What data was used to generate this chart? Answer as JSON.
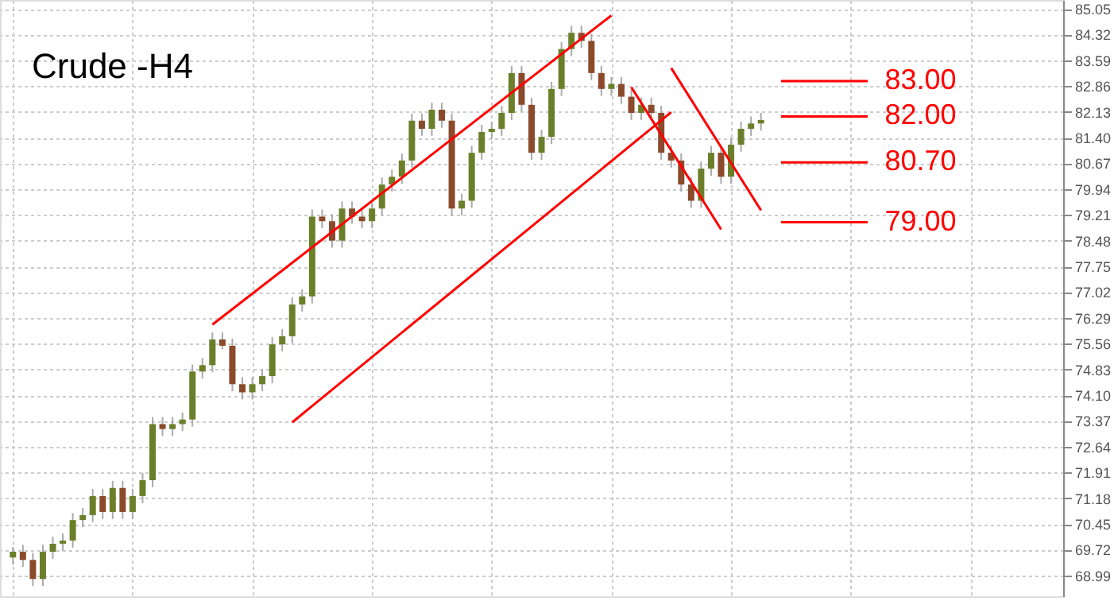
{
  "chart_data": {
    "type": "candlestick",
    "title": "Crude -H4",
    "categories": [
      null,
      null,
      null,
      null,
      null,
      null,
      null,
      null,
      null,
      null,
      null,
      null,
      null,
      null,
      null,
      null,
      null,
      null,
      null,
      null,
      null,
      null,
      null,
      null,
      null,
      null,
      null,
      null,
      null,
      null,
      null,
      null,
      null,
      null,
      null,
      null,
      null,
      null,
      null,
      null,
      null,
      null,
      null,
      null,
      null,
      null,
      null,
      null,
      null,
      null,
      null,
      null,
      null,
      null,
      null,
      null,
      null,
      null,
      null,
      null,
      null,
      null,
      null,
      null,
      null,
      null,
      null,
      null,
      null,
      null,
      null,
      null,
      null,
      null,
      null,
      null,
      null,
      null,
      null,
      null,
      null,
      null,
      null,
      null,
      null,
      null,
      null,
      null,
      null,
      null,
      null,
      null,
      null,
      null,
      null,
      null,
      null,
      null,
      null,
      null,
      null,
      null,
      null,
      null,
      null
    ],
    "ohlc": [
      [
        69.5,
        69.8,
        69.3,
        69.66
      ],
      [
        69.66,
        69.86,
        69.23,
        69.43
      ],
      [
        69.43,
        69.63,
        68.69,
        68.89
      ],
      [
        68.89,
        69.86,
        68.69,
        69.66
      ],
      [
        69.66,
        70.09,
        69.46,
        69.89
      ],
      [
        69.89,
        70.18,
        69.69,
        69.98
      ],
      [
        69.98,
        70.76,
        69.78,
        70.56
      ],
      [
        70.56,
        70.9,
        70.36,
        70.7
      ],
      [
        70.7,
        71.44,
        70.5,
        71.24
      ],
      [
        71.24,
        71.44,
        70.59,
        70.79
      ],
      [
        70.79,
        71.67,
        70.59,
        71.47
      ],
      [
        71.47,
        71.67,
        70.59,
        70.79
      ],
      [
        70.79,
        71.44,
        70.59,
        71.24
      ],
      [
        71.24,
        71.89,
        71.04,
        71.69
      ],
      [
        71.69,
        73.48,
        71.49,
        73.28
      ],
      [
        73.28,
        73.48,
        72.94,
        73.14
      ],
      [
        73.14,
        73.48,
        72.94,
        73.28
      ],
      [
        73.28,
        73.61,
        73.08,
        73.41
      ],
      [
        73.41,
        74.97,
        73.21,
        74.77
      ],
      [
        74.77,
        75.15,
        74.57,
        74.95
      ],
      [
        74.95,
        75.88,
        74.75,
        75.68
      ],
      [
        75.68,
        75.88,
        75.4,
        75.5
      ],
      [
        75.5,
        75.7,
        74.21,
        74.41
      ],
      [
        74.41,
        74.61,
        73.98,
        74.18
      ],
      [
        74.18,
        74.61,
        73.98,
        74.41
      ],
      [
        74.41,
        74.84,
        74.21,
        74.64
      ],
      [
        74.64,
        75.74,
        74.44,
        75.54
      ],
      [
        75.54,
        75.97,
        75.34,
        75.77
      ],
      [
        75.77,
        76.87,
        75.57,
        76.67
      ],
      [
        76.67,
        77.1,
        76.47,
        76.9
      ],
      [
        76.9,
        79.36,
        76.7,
        79.16
      ],
      [
        79.16,
        79.36,
        78.83,
        79.03
      ],
      [
        79.03,
        79.23,
        78.28,
        78.48
      ],
      [
        78.48,
        79.59,
        78.28,
        79.39
      ],
      [
        79.39,
        79.59,
        78.96,
        79.16
      ],
      [
        79.16,
        79.36,
        78.83,
        79.03
      ],
      [
        79.03,
        79.59,
        78.83,
        79.39
      ],
      [
        79.39,
        80.27,
        79.19,
        80.07
      ],
      [
        80.07,
        80.49,
        79.87,
        80.29
      ],
      [
        80.29,
        80.95,
        80.09,
        80.75
      ],
      [
        80.75,
        82.08,
        80.55,
        81.88
      ],
      [
        81.88,
        82.08,
        81.45,
        81.65
      ],
      [
        81.65,
        82.39,
        81.45,
        82.19
      ],
      [
        82.19,
        82.39,
        81.68,
        81.88
      ],
      [
        81.88,
        82.08,
        79.19,
        79.39
      ],
      [
        79.39,
        79.81,
        79.19,
        79.61
      ],
      [
        79.61,
        81.17,
        79.41,
        80.97
      ],
      [
        80.97,
        81.76,
        80.77,
        81.56
      ],
      [
        81.56,
        81.85,
        81.36,
        81.65
      ],
      [
        81.65,
        82.3,
        81.45,
        82.1
      ],
      [
        82.1,
        83.43,
        81.9,
        83.23
      ],
      [
        83.23,
        83.43,
        82.13,
        82.33
      ],
      [
        82.33,
        82.53,
        80.77,
        80.97
      ],
      [
        80.97,
        81.62,
        80.77,
        81.42
      ],
      [
        81.42,
        82.98,
        81.22,
        82.78
      ],
      [
        82.78,
        84.11,
        82.58,
        83.91
      ],
      [
        83.91,
        84.57,
        83.71,
        84.37
      ],
      [
        84.37,
        84.57,
        83.94,
        84.14
      ],
      [
        84.14,
        84.34,
        83.03,
        83.23
      ],
      [
        83.23,
        83.43,
        82.58,
        82.78
      ],
      [
        82.78,
        83.12,
        82.58,
        82.92
      ],
      [
        82.92,
        83.12,
        82.36,
        82.56
      ],
      [
        82.56,
        82.76,
        81.9,
        82.1
      ],
      [
        82.1,
        82.53,
        81.9,
        82.33
      ],
      [
        82.33,
        82.53,
        81.9,
        82.1
      ],
      [
        82.1,
        82.3,
        80.77,
        80.97
      ],
      [
        80.97,
        81.17,
        80.55,
        80.75
      ],
      [
        80.75,
        80.95,
        79.87,
        80.07
      ],
      [
        80.07,
        80.27,
        79.41,
        79.61
      ],
      [
        79.61,
        80.72,
        79.41,
        80.52
      ],
      [
        80.52,
        81.17,
        80.32,
        80.97
      ],
      [
        80.97,
        81.17,
        80.09,
        80.29
      ],
      [
        80.29,
        81.4,
        80.09,
        81.2
      ],
      [
        81.2,
        81.85,
        81.0,
        81.65
      ],
      [
        81.65,
        82.0,
        81.45,
        81.8
      ],
      [
        81.8,
        82.1,
        81.6,
        81.9
      ],
      null,
      null,
      null,
      null,
      null,
      null,
      null,
      null,
      null,
      null,
      null,
      null,
      null,
      null,
      null,
      null,
      null,
      null,
      null,
      null,
      null,
      null,
      null,
      null,
      null,
      null,
      null,
      null,
      null
    ],
    "series": [
      {
        "type": "line",
        "color": "#ff0000",
        "values": [
          null,
          null,
          null,
          null,
          null,
          null,
          null,
          null,
          null,
          null,
          null,
          null,
          null,
          null,
          null,
          null,
          null,
          null,
          null,
          null,
          76.1,
          null,
          null,
          null,
          null,
          null,
          null,
          null,
          null,
          null,
          null,
          null,
          null,
          null,
          null,
          null,
          null,
          null,
          null,
          null,
          null,
          null,
          null,
          null,
          null,
          null,
          null,
          null,
          null,
          null,
          null,
          null,
          null,
          null,
          null,
          null,
          null,
          null,
          null,
          null,
          84.86,
          null,
          null,
          null,
          null,
          null,
          null,
          null,
          null,
          null,
          null,
          null,
          null,
          null,
          null,
          null,
          null,
          null,
          null,
          null,
          null,
          null,
          null,
          null,
          null,
          null,
          null,
          null,
          null,
          null,
          null,
          null,
          null,
          null,
          null,
          null,
          null,
          null,
          null,
          null,
          null,
          null,
          null,
          null,
          null
        ]
      },
      {
        "type": "line",
        "color": "#ff0000",
        "values": [
          null,
          null,
          null,
          null,
          null,
          null,
          null,
          null,
          null,
          null,
          null,
          null,
          null,
          null,
          null,
          null,
          null,
          null,
          null,
          null,
          null,
          null,
          null,
          null,
          null,
          null,
          null,
          null,
          73.33,
          null,
          null,
          null,
          null,
          null,
          null,
          null,
          null,
          null,
          null,
          null,
          null,
          null,
          null,
          null,
          null,
          null,
          null,
          null,
          null,
          null,
          null,
          null,
          null,
          null,
          null,
          null,
          null,
          null,
          null,
          null,
          null,
          null,
          null,
          null,
          null,
          null,
          82.12,
          null,
          null,
          null,
          null,
          null,
          null,
          null,
          null,
          null,
          null,
          null,
          null,
          null,
          null,
          null,
          null,
          null,
          null,
          null,
          null,
          null,
          null,
          null,
          null,
          null,
          null,
          null,
          null,
          null,
          null,
          null,
          null,
          null,
          null,
          null,
          null,
          null,
          null
        ]
      },
      {
        "type": "line",
        "color": "#ff0000",
        "values": [
          null,
          null,
          null,
          null,
          null,
          null,
          null,
          null,
          null,
          null,
          null,
          null,
          null,
          null,
          null,
          null,
          null,
          null,
          null,
          null,
          null,
          null,
          null,
          null,
          null,
          null,
          null,
          null,
          null,
          null,
          null,
          null,
          null,
          null,
          null,
          null,
          null,
          null,
          null,
          null,
          null,
          null,
          null,
          null,
          null,
          null,
          null,
          null,
          null,
          null,
          null,
          null,
          null,
          null,
          null,
          null,
          null,
          null,
          null,
          null,
          null,
          null,
          null,
          null,
          null,
          null,
          83.37,
          null,
          null,
          null,
          null,
          null,
          null,
          null,
          null,
          79.34,
          null,
          null,
          null,
          null,
          null,
          null,
          null,
          null,
          null,
          null,
          null,
          null,
          null,
          null,
          null,
          null,
          null,
          null,
          null,
          null,
          null,
          null,
          null,
          null,
          null,
          null,
          null,
          null,
          null
        ]
      },
      {
        "type": "line",
        "color": "#ff0000",
        "values": [
          null,
          null,
          null,
          null,
          null,
          null,
          null,
          null,
          null,
          null,
          null,
          null,
          null,
          null,
          null,
          null,
          null,
          null,
          null,
          null,
          null,
          null,
          null,
          null,
          null,
          null,
          null,
          null,
          null,
          null,
          null,
          null,
          null,
          null,
          null,
          null,
          null,
          null,
          null,
          null,
          null,
          null,
          null,
          null,
          null,
          null,
          null,
          null,
          null,
          null,
          null,
          null,
          null,
          null,
          null,
          null,
          null,
          null,
          null,
          null,
          null,
          null,
          82.83,
          null,
          null,
          null,
          null,
          null,
          null,
          null,
          null,
          78.8,
          null,
          null,
          null,
          null,
          null,
          null,
          null,
          null,
          null,
          null,
          null,
          null,
          null,
          null,
          null,
          null,
          null,
          null,
          null,
          null,
          null,
          null,
          null,
          null,
          null,
          null,
          null,
          null,
          null,
          null,
          null,
          null,
          null
        ]
      }
    ],
    "ref_lines": [
      {
        "axis": "y",
        "value": 83,
        "label": "83.00",
        "color": "#ff0000"
      },
      {
        "axis": "y",
        "value": 82,
        "label": "82.00",
        "color": "#ff0000"
      },
      {
        "axis": "y",
        "value": 80.7,
        "label": "80.70",
        "color": "#ff0000"
      },
      {
        "axis": "y",
        "value": 79,
        "label": "79.00",
        "color": "#ff0000"
      }
    ],
    "ylim": [
      68.4,
      85.3
    ],
    "yticks": [
      68.99,
      69.72,
      70.45,
      71.18,
      71.91,
      72.64,
      73.37,
      {
        "value": 74.1,
        "label": "74.10"
      },
      74.83,
      75.56,
      76.29,
      77.02,
      77.75,
      78.48,
      79.21,
      79.94,
      80.67,
      {
        "value": 81.4,
        "label": "81.40"
      },
      82.13,
      82.86,
      83.59,
      84.32,
      85.05
    ],
    "tick_labels": "y",
    "grid": true
  }
}
